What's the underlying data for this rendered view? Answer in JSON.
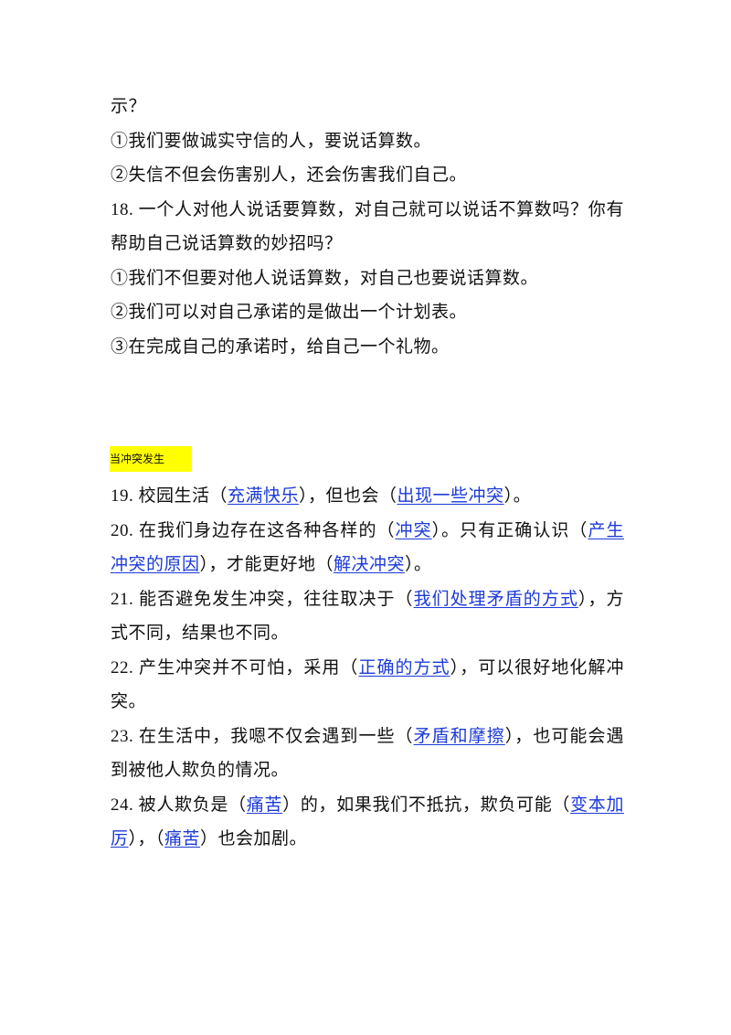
{
  "section1": {
    "lines": [
      "示？",
      "①我们要做诚实守信的人，要说话算数。",
      "②失信不但会伤害别人，还会伤害我们自己。",
      "18. 一个人对他人说话要算数，对自己就可以说话不算数吗？你有帮助自己说话算数的妙招吗？",
      "①我们不但要对他人说话算数，对自己也要说话算数。",
      "②我们可以对自己承诺的是做出一个计划表。",
      "③在完成自己的承诺时，给自己一个礼物。"
    ]
  },
  "section2": {
    "heading": "当冲突发生",
    "items": [
      [
        "19. 校园生活（",
        "充满快乐",
        "），但也会（",
        "出现一些冲突",
        "）。"
      ],
      [
        "20. 在我们身边存在这各种各样的（",
        "冲突",
        "）。只有正确认识（",
        "产生冲突的原因",
        "），才能更好地（",
        "解决冲突",
        "）。"
      ],
      [
        "21. 能否避免发生冲突，往往取决于（",
        "我们处理矛盾的方式",
        "），方式不同，结果也不同。"
      ],
      [
        "22. 产生冲突并不可怕，采用（",
        "正确的方式",
        "），可以很好地化解冲突。"
      ],
      [
        "23. 在生活中，我嗯不仅会遇到一些（",
        "矛盾和摩擦",
        "），也可能会遇到被他人欺负的情况。"
      ],
      [
        "24. 被人欺负是（",
        "痛苦",
        "）的，如果我们不抵抗，欺负可能（",
        "变本加厉",
        "），（",
        "痛苦",
        "）也会加剧。"
      ]
    ]
  }
}
